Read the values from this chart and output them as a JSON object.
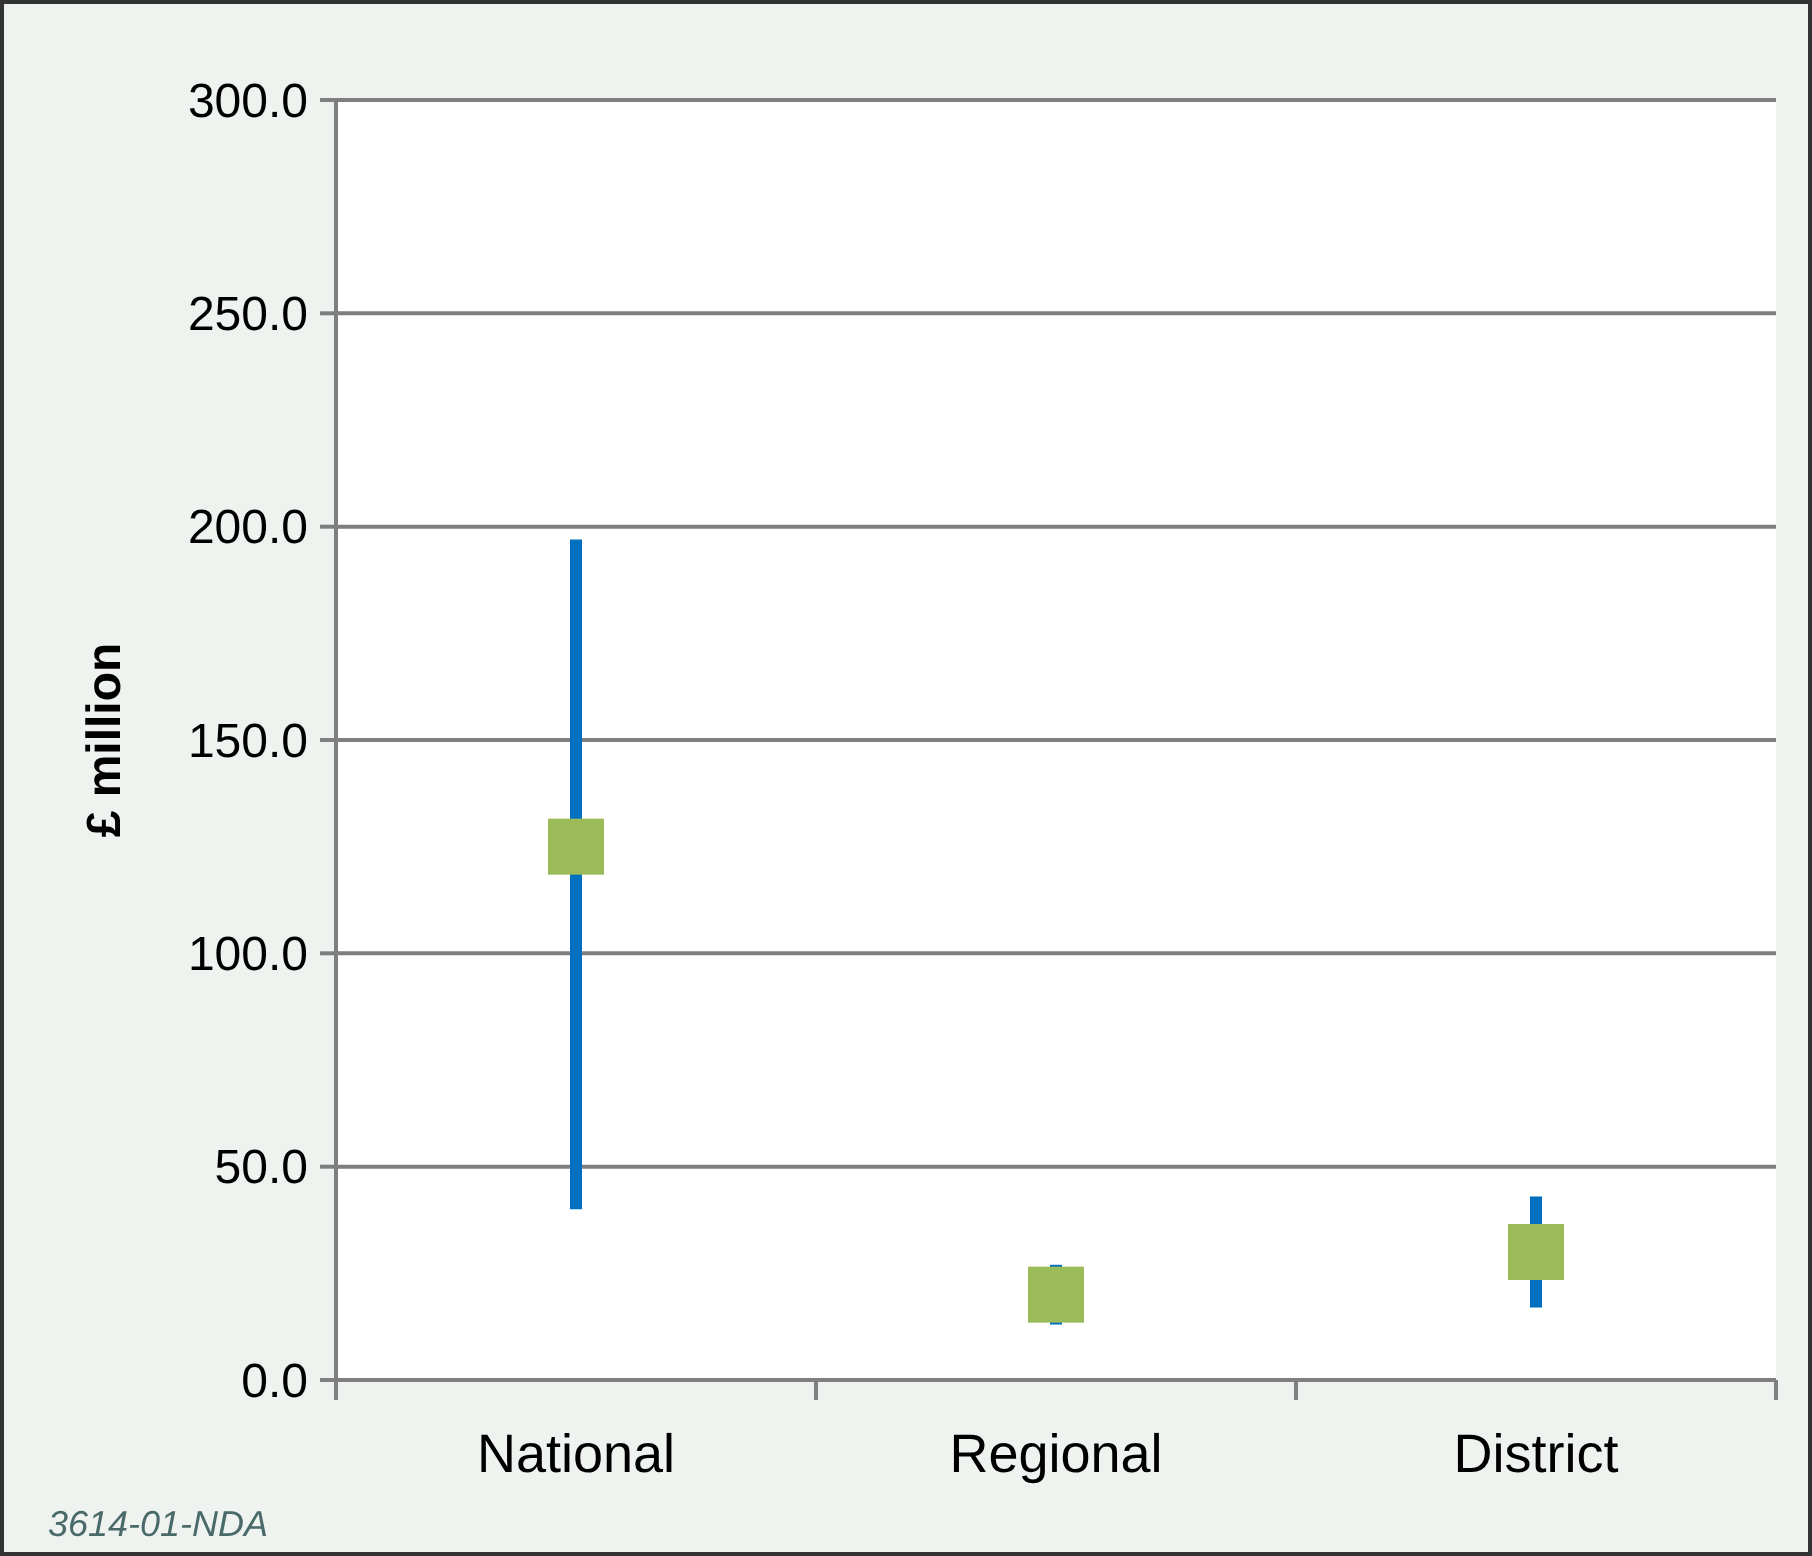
{
  "chart_data": {
    "type": "scatter",
    "ylabel": "£ million",
    "categories": [
      "National",
      "Regional",
      "District"
    ],
    "series": [
      {
        "color": "#9bbb59",
        "values": [
          125,
          20,
          30
        ],
        "errors": [
          [
            40,
            197
          ],
          [
            13,
            27
          ],
          [
            17,
            43
          ]
        ]
      }
    ],
    "marker": "square",
    "ylim": [
      0,
      300
    ],
    "yticks": [
      {
        "value": 0,
        "label": "0.0"
      },
      {
        "value": 50,
        "label": "50.0"
      },
      {
        "value": 100,
        "label": "100.0"
      },
      {
        "value": 150,
        "label": "150.0"
      },
      {
        "value": 200,
        "label": "200.0"
      },
      {
        "value": 250,
        "label": "250.0"
      },
      {
        "value": 300,
        "label": "300.0"
      }
    ],
    "grid": "y",
    "annotations": [
      "3614-01-NDA"
    ]
  }
}
